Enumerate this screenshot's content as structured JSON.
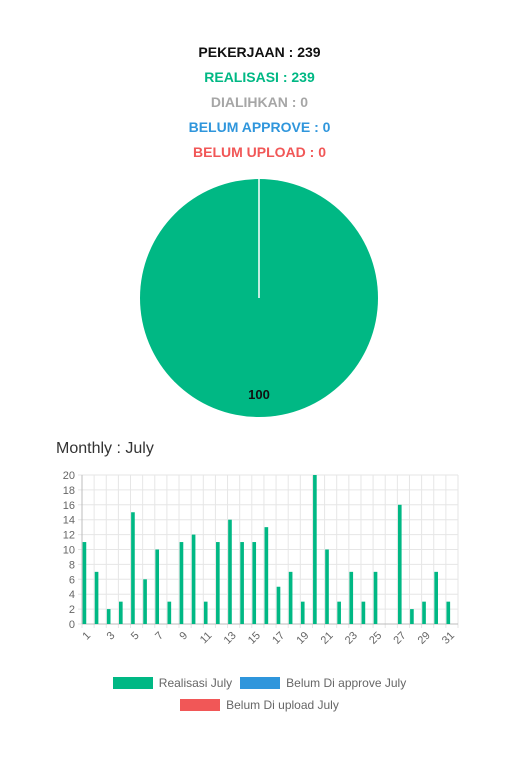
{
  "summary": {
    "pekerjaan": "PEKERJAAN : 239",
    "realisasi": "REALISASI : 239",
    "dialihkan": "DIALIHKAN : 0",
    "belum_approve": "BELUM APPROVE : 0",
    "belum_upload": "BELUM UPLOAD : 0"
  },
  "monthly_title": "Monthly : July",
  "colors": {
    "realisasi": "#00b884",
    "approve": "#2f96dc",
    "upload": "#f15757",
    "dialihkan": "#a6a6a6"
  },
  "chart_data": [
    {
      "type": "pie",
      "slices": [
        {
          "label": "Realisasi",
          "value": 100,
          "color": "#00b884"
        }
      ],
      "data_label": "100",
      "legend": "none"
    },
    {
      "type": "bar",
      "title": "",
      "xlabel": "",
      "ylabel": "",
      "categories": [
        1,
        2,
        3,
        4,
        5,
        6,
        7,
        8,
        9,
        10,
        11,
        12,
        13,
        14,
        15,
        16,
        17,
        18,
        19,
        20,
        21,
        22,
        23,
        24,
        25,
        26,
        27,
        28,
        29,
        30,
        31
      ],
      "x_tick_labels": [
        "1",
        "3",
        "5",
        "7",
        "9",
        "11",
        "13",
        "15",
        "17",
        "19",
        "21",
        "23",
        "25",
        "27",
        "29",
        "31"
      ],
      "ylim": [
        0,
        20
      ],
      "y_ticks": [
        0,
        2,
        4,
        6,
        8,
        10,
        12,
        14,
        16,
        18,
        20
      ],
      "grid": true,
      "legend_position": "bottom",
      "series": [
        {
          "name": "Realisasi July",
          "color": "#00b884",
          "values": [
            11,
            7,
            2,
            3,
            15,
            6,
            10,
            3,
            11,
            12,
            3,
            11,
            14,
            11,
            11,
            13,
            5,
            7,
            3,
            20,
            10,
            3,
            7,
            3,
            7,
            0,
            16,
            2,
            3,
            7,
            3
          ]
        },
        {
          "name": "Belum Di approve July",
          "color": "#2f96dc",
          "values": [
            0,
            0,
            0,
            0,
            0,
            0,
            0,
            0,
            0,
            0,
            0,
            0,
            0,
            0,
            0,
            0,
            0,
            0,
            0,
            0,
            0,
            0,
            0,
            0,
            0,
            0,
            0,
            0,
            0,
            0,
            0
          ]
        },
        {
          "name": "Belum Di upload July",
          "color": "#f15757",
          "values": [
            0,
            0,
            0,
            0,
            0,
            0,
            0,
            0,
            0,
            0,
            0,
            0,
            0,
            0,
            0,
            0,
            0,
            0,
            0,
            0,
            0,
            0,
            0,
            0,
            0,
            0,
            0,
            0,
            0,
            0,
            0
          ]
        }
      ]
    }
  ]
}
